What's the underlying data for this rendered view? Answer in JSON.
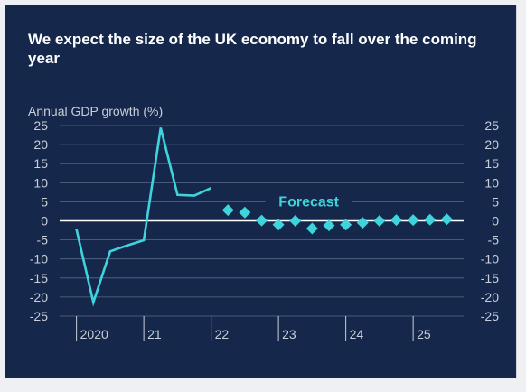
{
  "chart_data": {
    "type": "line",
    "title": "We expect the size of the UK economy to fall over the coming year",
    "ylabel": "Annual GDP growth (%)",
    "xlabel": "",
    "ylim": [
      -25,
      25
    ],
    "yticks": [
      25,
      20,
      15,
      10,
      5,
      0,
      -5,
      -10,
      -15,
      -20,
      -25
    ],
    "xlim": [
      2019.75,
      2025.75
    ],
    "xticks": [
      {
        "label": "2020",
        "x": 2020
      },
      {
        "label": "21",
        "x": 2021
      },
      {
        "label": "22",
        "x": 2022
      },
      {
        "label": "23",
        "x": 2023
      },
      {
        "label": "24",
        "x": 2024
      },
      {
        "label": "25",
        "x": 2025
      }
    ],
    "annotation": "Forecast",
    "grid": true,
    "series": [
      {
        "kind": "line",
        "values": [
          {
            "x": 2020.0,
            "y": -2.2
          },
          {
            "x": 2020.25,
            "y": -21.4
          },
          {
            "x": 2020.5,
            "y": -8.0
          },
          {
            "x": 2020.75,
            "y": -6.5
          },
          {
            "x": 2021.0,
            "y": -5.1
          },
          {
            "x": 2021.25,
            "y": 24.4
          },
          {
            "x": 2021.5,
            "y": 6.8
          },
          {
            "x": 2021.75,
            "y": 6.6
          },
          {
            "x": 2022.0,
            "y": 8.6
          }
        ]
      },
      {
        "kind": "diamonds",
        "values": [
          {
            "x": 2022.25,
            "y": 2.8
          },
          {
            "x": 2022.5,
            "y": 2.2
          },
          {
            "x": 2022.75,
            "y": 0.1
          },
          {
            "x": 2023.0,
            "y": -1.0
          },
          {
            "x": 2023.25,
            "y": 0.0
          },
          {
            "x": 2023.5,
            "y": -2.0
          },
          {
            "x": 2023.75,
            "y": -1.2
          },
          {
            "x": 2024.0,
            "y": -1.0
          },
          {
            "x": 2024.25,
            "y": -0.5
          },
          {
            "x": 2024.5,
            "y": 0.0
          },
          {
            "x": 2024.75,
            "y": 0.2
          },
          {
            "x": 2025.0,
            "y": 0.2
          },
          {
            "x": 2025.25,
            "y": 0.3
          },
          {
            "x": 2025.5,
            "y": 0.4
          }
        ]
      }
    ],
    "colors": {
      "background": "#15284b",
      "series": "#3fd3dc",
      "grid": "#5a6b8a",
      "zero_line": "#ffffff",
      "text": "#c9ced8",
      "title": "#ffffff"
    }
  }
}
